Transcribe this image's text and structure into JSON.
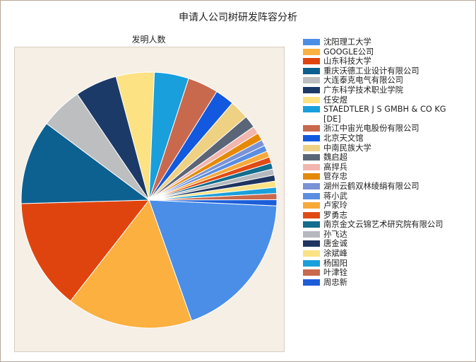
{
  "title": "申请人公司树研发阵容分析",
  "chart_data": {
    "type": "pie",
    "title": "申请人公司树研发阵容分析",
    "subtitle": "发明人数",
    "legend_position": "right",
    "slices": [
      {
        "name": "沈阳理工大学",
        "value": 19.5,
        "color": "#4a8ee8"
      },
      {
        "name": "GOOGLE公司",
        "value": 16.5,
        "color": "#fbb03f"
      },
      {
        "name": "山东科技大学",
        "value": 14.5,
        "color": "#e0440e"
      },
      {
        "name": "重庆沃德工业设计有限公司",
        "value": 11.0,
        "color": "#0c6190"
      },
      {
        "name": "大连泰克电气有限公司",
        "value": 5.5,
        "color": "#bdbebf"
      },
      {
        "name": "广东科学技术职业学院",
        "value": 5.5,
        "color": "#1b3a68"
      },
      {
        "name": "任安煜",
        "value": 5.0,
        "color": "#fde283"
      },
      {
        "name": "STAEDTLER J S GMBH & CO KG [DE]",
        "value": 4.5,
        "color": "#189fdc"
      },
      {
        "name": "浙江中宙光电股份有限公司",
        "value": 4.0,
        "color": "#c8694d"
      },
      {
        "name": "北京天文馆",
        "value": 2.5,
        "color": "#1259df"
      },
      {
        "name": "中南民族大学",
        "value": 2.5,
        "color": "#efd183"
      },
      {
        "name": "魏启超",
        "value": 1.6,
        "color": "#5a6577"
      },
      {
        "name": "高捍兵",
        "value": 1.0,
        "color": "#f1b6ae"
      },
      {
        "name": "管存忠",
        "value": 1.0,
        "color": "#e58a08"
      },
      {
        "name": "湖州云鹤双林绫绢有限公司",
        "value": 0.8,
        "color": "#7a93d7"
      },
      {
        "name": "蒋小武",
        "value": 0.8,
        "color": "#5b8ee0"
      },
      {
        "name": "卢家玲",
        "value": 0.8,
        "color": "#f7a93a"
      },
      {
        "name": "罗勇志",
        "value": 0.8,
        "color": "#e14a14"
      },
      {
        "name": "南京金文云锦艺术研究院有限公司",
        "value": 0.8,
        "color": "#126d8e"
      },
      {
        "name": "孙飞达",
        "value": 0.8,
        "color": "#b5b8bd"
      },
      {
        "name": "唐金诚",
        "value": 0.8,
        "color": "#1f3560"
      },
      {
        "name": "涂斌峰",
        "value": 0.8,
        "color": "#fbe284"
      },
      {
        "name": "杨国阳",
        "value": 0.8,
        "color": "#1aa0db"
      },
      {
        "name": "叶津铨",
        "value": 0.8,
        "color": "#c96a4d"
      },
      {
        "name": "周忠新",
        "value": 0.8,
        "color": "#1d5ed8"
      }
    ]
  }
}
